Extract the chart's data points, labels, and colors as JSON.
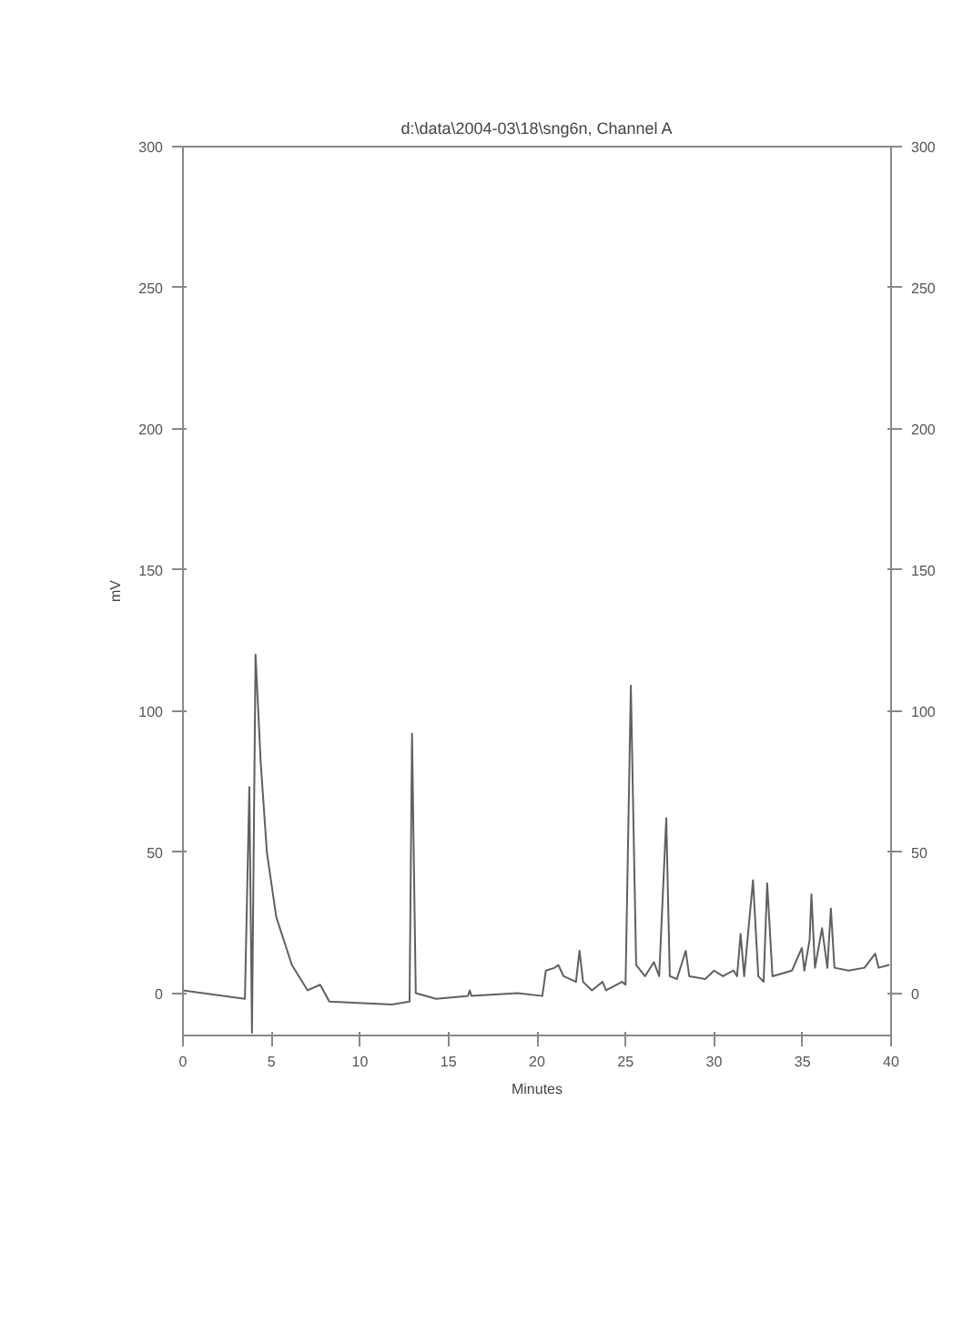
{
  "chart_data": {
    "type": "line",
    "title": "d:\\data\\2004-03\\18\\sng6n, Channel A",
    "xlabel": "Minutes",
    "ylabel": "mV",
    "x": [
      0,
      3.5,
      3.75,
      3.9,
      4.1,
      4.39,
      4.74,
      5.27,
      6.15,
      7.04,
      7.75,
      8.27,
      11.8,
      12.8,
      12.94,
      13.15,
      14.3,
      16.1,
      16.2,
      16.3,
      18.9,
      20.3,
      20.5,
      21.0,
      21.2,
      21.5,
      22.2,
      22.4,
      22.6,
      23.1,
      23.7,
      23.9,
      24.8,
      25.0,
      25.3,
      25.6,
      26.1,
      26.6,
      26.9,
      27.3,
      27.5,
      27.9,
      28.4,
      28.6,
      29.5,
      30.0,
      30.5,
      31.1,
      31.3,
      31.5,
      31.7,
      32.2,
      32.5,
      32.8,
      33.0,
      33.3,
      34.4,
      34.96,
      35.1,
      35.4,
      35.5,
      35.7,
      36.1,
      36.4,
      36.6,
      36.8,
      37.6,
      38.5,
      39.1,
      39.3,
      39.9
    ],
    "values": [
      1,
      -2,
      73,
      -14,
      120,
      82,
      50,
      27,
      10,
      1,
      3,
      -3,
      -4,
      -3,
      92,
      0,
      -2,
      -1,
      1,
      -1,
      0,
      -1,
      8,
      9,
      10,
      6,
      4,
      15,
      4,
      1,
      4,
      1,
      4,
      3,
      109,
      10,
      6,
      11,
      6,
      62,
      6,
      5,
      15,
      6,
      5,
      8,
      6,
      8,
      6,
      21,
      6,
      40,
      6,
      4,
      39,
      6,
      8,
      16,
      8,
      19,
      35,
      9,
      23,
      9,
      30,
      9,
      8,
      9,
      14,
      9,
      10
    ],
    "color": "#606060",
    "xlim": [
      0,
      40
    ],
    "ylim": [
      -15,
      300
    ],
    "y2lim": [
      -15,
      300
    ],
    "xticks": [
      0,
      5,
      10,
      15,
      20,
      25,
      30,
      35,
      40
    ],
    "yticks": [
      0,
      50,
      100,
      150,
      200,
      250,
      300
    ],
    "y2ticks": [
      0,
      50,
      100,
      150,
      200,
      250,
      300
    ],
    "grid": false,
    "marker": "none",
    "line_style": "solid"
  }
}
